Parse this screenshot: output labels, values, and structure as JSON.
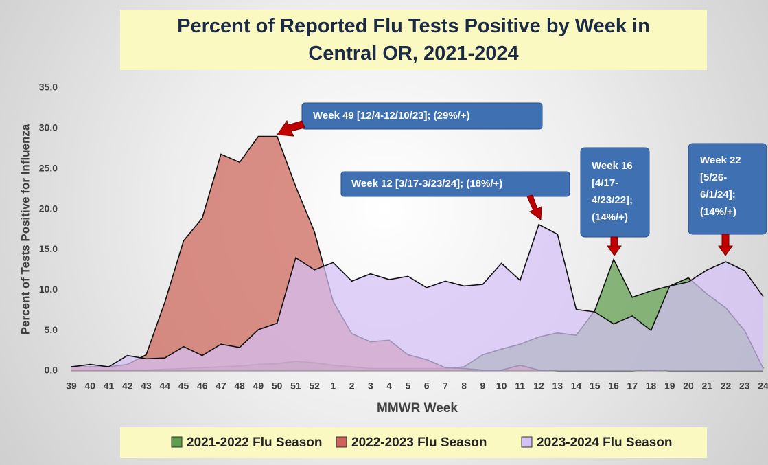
{
  "chart_data": {
    "type": "area",
    "title": "Percent of Reported Flu Tests Positive by Week in Central OR, 2021-2024",
    "y_label": "Percent of Tests Positive for Influenza",
    "x_label": "MMWR Week",
    "categories": [
      "39",
      "40",
      "41",
      "42",
      "43",
      "44",
      "45",
      "46",
      "47",
      "48",
      "49",
      "50",
      "51",
      "52",
      "1",
      "2",
      "3",
      "4",
      "5",
      "6",
      "7",
      "8",
      "9",
      "10",
      "11",
      "12",
      "13",
      "14",
      "15",
      "16",
      "17",
      "18",
      "19",
      "20",
      "21",
      "22",
      "23",
      "24"
    ],
    "series": [
      {
        "name": "2021-2022 Flu Season",
        "color": "#5e9e4c",
        "values": [
          0.1,
          0.1,
          0.1,
          0.1,
          0.1,
          0.2,
          0.3,
          0.4,
          0.5,
          0.6,
          0.8,
          0.9,
          1.2,
          1.0,
          0.7,
          0.5,
          0.3,
          0.3,
          0.3,
          0.3,
          0.3,
          0.5,
          2.0,
          2.7,
          3.3,
          4.2,
          4.7,
          4.4,
          7.5,
          13.8,
          9.1,
          9.9,
          10.5,
          11.5,
          9.5,
          7.8,
          5.0,
          0.3
        ]
      },
      {
        "name": "2022-2023 Flu Season",
        "color": "#cc6459",
        "values": [
          0.5,
          0.5,
          0.5,
          0.8,
          2.0,
          8.5,
          16.1,
          18.9,
          26.8,
          25.8,
          29.0,
          29.0,
          22.8,
          17.2,
          8.6,
          4.6,
          3.6,
          3.8,
          2.0,
          1.4,
          0.4,
          0.3,
          0.1,
          0.1,
          0.7,
          0.1,
          0.0,
          0.0,
          0.0,
          0.0,
          0.0,
          0.1,
          0.0,
          0.0,
          0.0,
          0.0,
          0.0,
          0.0
        ]
      },
      {
        "name": "2023-2024 Flu Season",
        "color": "#d4c1f5",
        "values": [
          0.5,
          0.8,
          0.5,
          1.9,
          1.5,
          1.6,
          3.0,
          1.9,
          3.3,
          2.9,
          5.1,
          5.9,
          14.0,
          12.5,
          13.4,
          11.1,
          12.0,
          11.3,
          11.7,
          10.3,
          11.1,
          10.5,
          10.7,
          13.3,
          11.2,
          18.1,
          16.9,
          7.6,
          7.3,
          5.8,
          6.8,
          5.0,
          10.5,
          11.0,
          12.5,
          13.5,
          12.4,
          9.2
        ]
      }
    ],
    "ylim": [
      0,
      35
    ],
    "yticks": [
      {
        "value": 0,
        "label": "0.0"
      },
      {
        "value": 5,
        "label": "5.0"
      },
      {
        "value": 10,
        "label": "10.0"
      },
      {
        "value": 15,
        "label": "15.0"
      },
      {
        "value": 20,
        "label": "20.0"
      },
      {
        "value": 25,
        "label": "25.0"
      },
      {
        "value": 30,
        "label": "30.0"
      },
      {
        "value": 35,
        "label": "35.0"
      }
    ],
    "grid": false,
    "legend": "bottom",
    "annotations": [
      {
        "lines": [
          "Week 49 [12/4-12/10/23]; (29%/+)"
        ]
      },
      {
        "lines": [
          "Week 12 [3/17-3/23/24]; (18%/+)"
        ]
      },
      {
        "lines": [
          "Week 16",
          "[4/17-",
          "4/23/22];",
          "(14%/+)"
        ]
      },
      {
        "lines": [
          "Week 22",
          "[5/26-",
          "6/1/24];",
          "(14%/+)"
        ]
      }
    ]
  }
}
